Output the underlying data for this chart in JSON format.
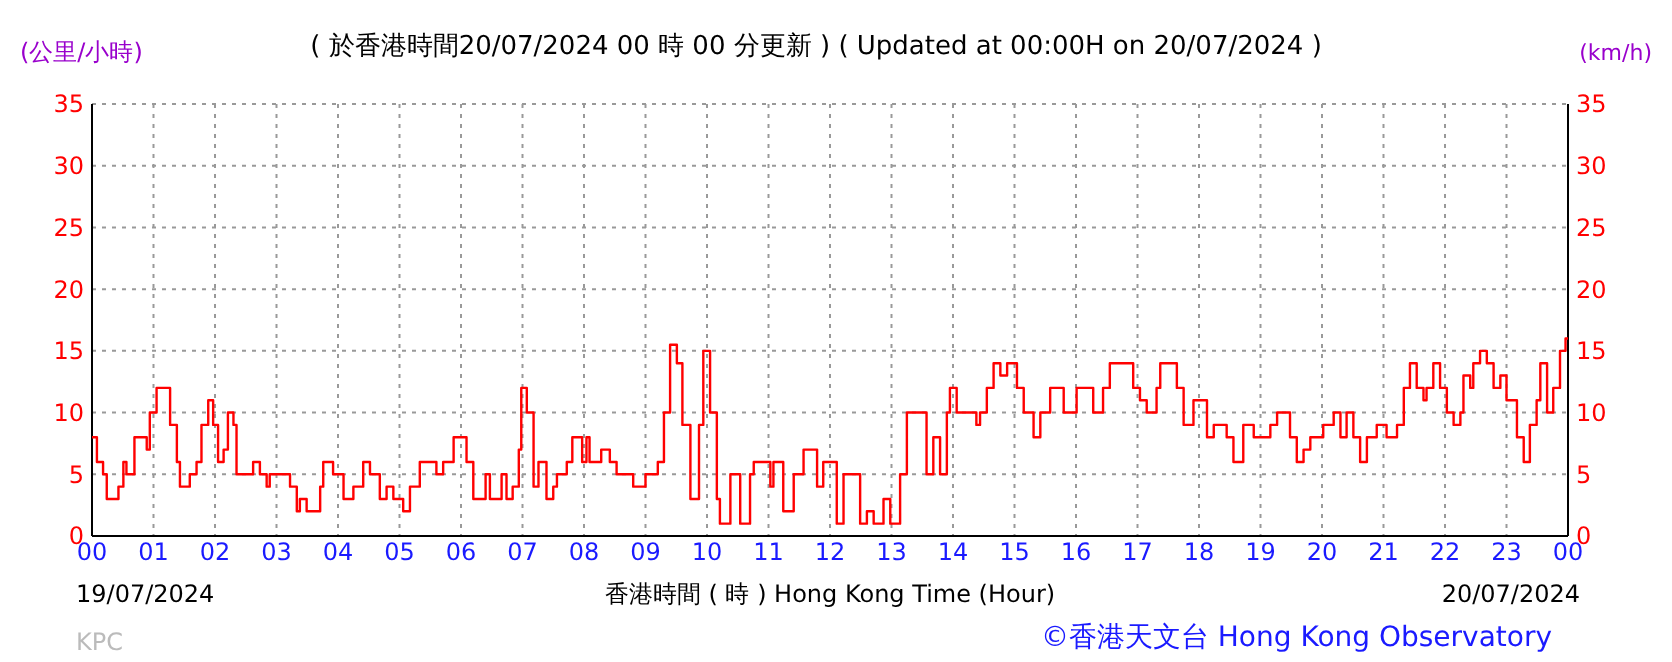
{
  "chart_data": {
    "type": "step",
    "title": "( 於香港時間20/07/2024 00 時 00 分更新 ) ( Updated at 00:00H on 20/07/2024 )",
    "xlabel": "香港時間 ( 時 ) Hong Kong Time (Hour)",
    "ylabel": "(公里/小時)",
    "y2label": "(km/h)",
    "annotations": [
      "19/07/2024",
      "20/07/2024",
      "KPC",
      "©香港天文台 Hong Kong Observatory"
    ],
    "xlim": [
      0,
      24
    ],
    "xticks": [
      {
        "value": 0,
        "label": "00"
      },
      {
        "value": 1,
        "label": "01"
      },
      {
        "value": 2,
        "label": "02"
      },
      {
        "value": 3,
        "label": "03"
      },
      {
        "value": 4,
        "label": "04"
      },
      {
        "value": 5,
        "label": "05"
      },
      {
        "value": 6,
        "label": "06"
      },
      {
        "value": 7,
        "label": "07"
      },
      {
        "value": 8,
        "label": "08"
      },
      {
        "value": 9,
        "label": "09"
      },
      {
        "value": 10,
        "label": "10"
      },
      {
        "value": 11,
        "label": "11"
      },
      {
        "value": 12,
        "label": "12"
      },
      {
        "value": 13,
        "label": "13"
      },
      {
        "value": 14,
        "label": "14"
      },
      {
        "value": 15,
        "label": "15"
      },
      {
        "value": 16,
        "label": "16"
      },
      {
        "value": 17,
        "label": "17"
      },
      {
        "value": 18,
        "label": "18"
      },
      {
        "value": 19,
        "label": "19"
      },
      {
        "value": 20,
        "label": "20"
      },
      {
        "value": 21,
        "label": "21"
      },
      {
        "value": 22,
        "label": "22"
      },
      {
        "value": 23,
        "label": "23"
      },
      {
        "value": 24,
        "label": "00"
      }
    ],
    "ylim": [
      0,
      35
    ],
    "yticks": [
      0,
      5,
      10,
      15,
      20,
      25,
      30,
      35
    ],
    "y2lim": [
      0,
      35
    ],
    "y2ticks": [
      0,
      5,
      10,
      15,
      20,
      25,
      30,
      35
    ],
    "grid": true,
    "series": [
      {
        "color": "#ff0000",
        "x": [
          0,
          0.08,
          0.18,
          0.24,
          0.35,
          0.43,
          0.51,
          0.56,
          0.67,
          0.69,
          0.83,
          0.89,
          0.94,
          1.05,
          1.16,
          1.27,
          1.38,
          1.43,
          1.49,
          1.59,
          1.7,
          1.78,
          1.89,
          1.97,
          2.05,
          2.14,
          2.21,
          2.3,
          2.35,
          2.57,
          2.62,
          2.73,
          2.84,
          2.89,
          3.06,
          3.22,
          3.33,
          3.38,
          3.49,
          3.6,
          3.71,
          3.76,
          3.87,
          3.92,
          4.09,
          4.25,
          4.41,
          4.52,
          4.68,
          4.79,
          4.9,
          5.01,
          5.06,
          5.17,
          5.33,
          5.5,
          5.6,
          5.71,
          5.88,
          5.98,
          6.09,
          6.2,
          6.31,
          6.4,
          6.47,
          6.58,
          6.66,
          6.74,
          6.84,
          6.94,
          6.98,
          7.07,
          7.18,
          7.26,
          7.39,
          7.5,
          7.56,
          7.72,
          7.81,
          7.88,
          7.97,
          8.04,
          8.09,
          8.21,
          8.28,
          8.42,
          8.53,
          8.6,
          8.8,
          9.0,
          9.2,
          9.3,
          9.4,
          9.51,
          9.6,
          9.73,
          9.87,
          9.94,
          10.05,
          10.16,
          10.21,
          10.38,
          10.54,
          10.65,
          10.7,
          10.76,
          10.97,
          11.03,
          11.08,
          11.24,
          11.41,
          11.57,
          11.79,
          11.89,
          12.0,
          12.11,
          12.22,
          12.33,
          12.49,
          12.6,
          12.71,
          12.82,
          12.87,
          12.98,
          13.14,
          13.25,
          13.47,
          13.57,
          13.68,
          13.79,
          13.9,
          13.95,
          14.06,
          14.22,
          14.38,
          14.44,
          14.55,
          14.66,
          14.77,
          14.88,
          15.04,
          15.15,
          15.31,
          15.42,
          15.58,
          15.8,
          15.96,
          16.01,
          16.17,
          16.28,
          16.44,
          16.55,
          16.83,
          16.93,
          17.04,
          17.15,
          17.26,
          17.31,
          17.37,
          17.53,
          17.64,
          17.75,
          17.91,
          18.13,
          18.24,
          18.45,
          18.56,
          18.67,
          18.72,
          18.89,
          19.05,
          19.16,
          19.27,
          19.37,
          19.48,
          19.59,
          19.7,
          19.81,
          19.86,
          20.02,
          20.08,
          20.19,
          20.3,
          20.4,
          20.51,
          20.62,
          20.73,
          20.89,
          21.0,
          21.05,
          21.22,
          21.33,
          21.43,
          21.54,
          21.65,
          21.7,
          21.81,
          21.92,
          22.03,
          22.14,
          22.25,
          22.3,
          22.41,
          22.46,
          22.57,
          22.68,
          22.79,
          22.9,
          23.0,
          23.17,
          23.28,
          23.38,
          23.49,
          23.55,
          23.66,
          23.76,
          23.87,
          23.96,
          24
        ],
        "values": [
          8,
          6,
          5,
          3,
          3,
          4,
          6,
          5,
          5,
          8,
          8,
          7,
          10,
          12,
          12,
          9,
          6,
          4,
          4,
          5,
          6,
          9,
          11,
          9,
          6,
          7,
          10,
          9,
          5,
          5,
          6,
          5,
          4,
          5,
          5,
          4,
          2,
          3,
          2,
          2,
          4,
          6,
          6,
          5,
          3,
          4,
          6,
          5,
          3,
          4,
          3,
          3,
          2,
          4,
          6,
          6,
          5,
          6,
          8,
          8,
          6,
          3,
          3,
          5,
          3,
          3,
          5,
          3,
          4,
          7,
          12,
          10,
          4,
          6,
          3,
          4,
          5,
          6,
          8,
          8,
          6,
          8,
          6,
          6,
          7,
          6,
          5,
          5,
          4,
          5,
          6,
          10,
          15.5,
          14,
          9,
          3,
          9,
          15,
          10,
          3,
          1,
          5,
          1,
          1,
          5,
          6,
          6,
          4,
          6,
          2,
          5,
          7,
          4,
          6,
          6,
          1,
          5,
          5,
          1,
          2,
          1,
          1,
          3,
          1,
          5,
          10,
          10,
          5,
          8,
          5,
          10,
          12,
          10,
          10,
          9,
          10,
          12,
          14,
          13,
          14,
          12,
          10,
          8,
          10,
          12,
          10,
          10,
          12,
          12,
          10,
          12,
          14,
          14,
          12,
          11,
          10,
          10,
          12,
          14,
          14,
          12,
          9,
          11,
          8,
          9,
          8,
          6,
          6,
          9,
          8,
          8,
          9,
          10,
          10,
          8,
          6,
          7,
          8,
          8,
          9,
          9,
          10,
          8,
          10,
          8,
          6,
          8,
          9,
          9,
          8,
          9,
          12,
          14,
          12,
          11,
          12,
          14,
          12,
          10,
          9,
          10,
          13,
          12,
          14,
          15,
          14,
          12,
          13,
          11,
          8,
          6,
          9,
          11,
          14,
          10,
          12,
          15,
          16,
          16
        ]
      }
    ]
  }
}
